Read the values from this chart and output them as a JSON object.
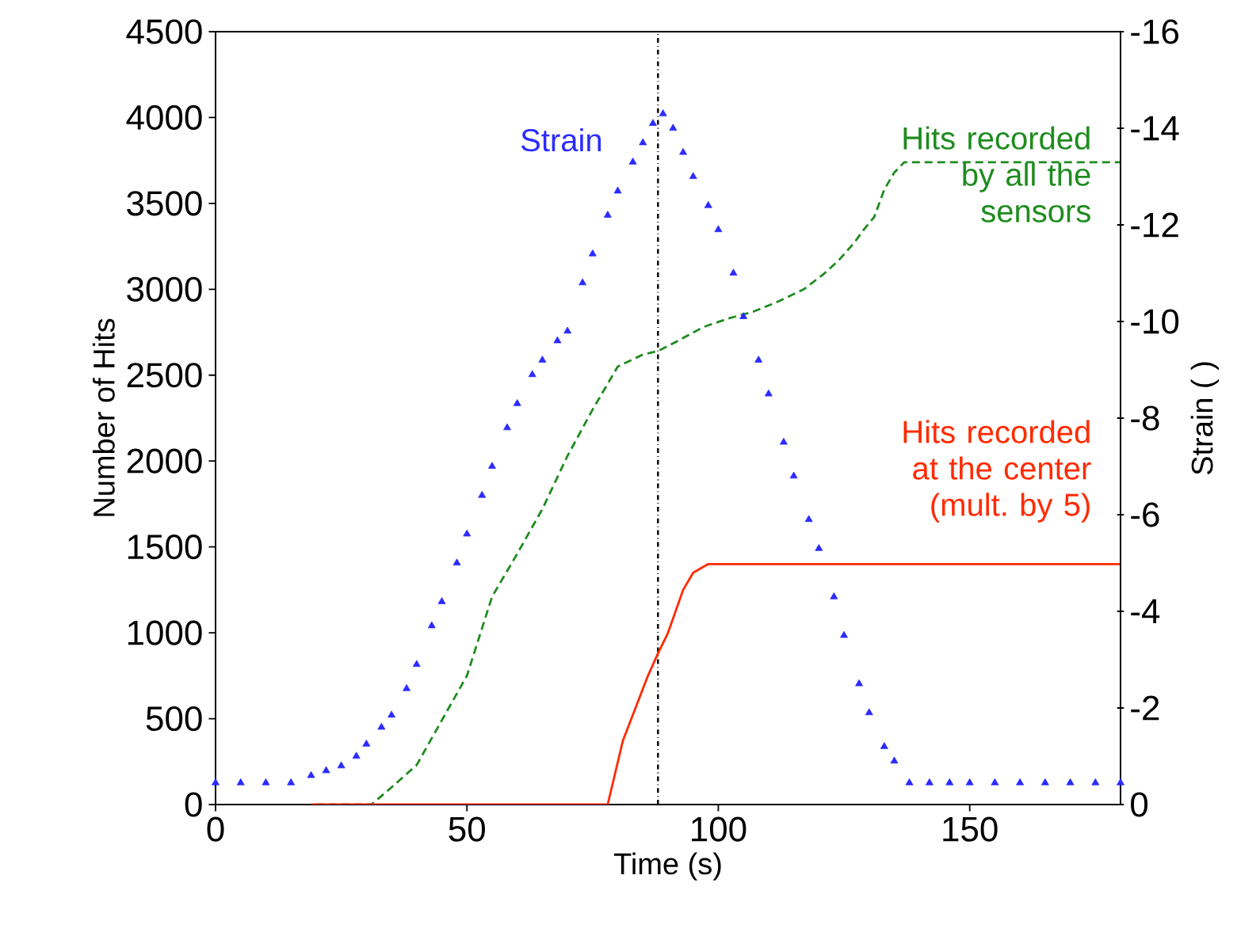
{
  "chart_data": {
    "type": "line",
    "xlabel": "Time (s)",
    "ylabel": "Number of Hits",
    "y2label": "Strain ( )",
    "xlim": [
      0,
      180
    ],
    "xticks": [
      0,
      50,
      100,
      150
    ],
    "ylim": [
      0,
      4500
    ],
    "yticks": [
      0,
      500,
      1000,
      1500,
      2000,
      2500,
      3000,
      3500,
      4000,
      4500
    ],
    "y2lim": [
      0,
      -16
    ],
    "y2ticks": [
      0,
      -2,
      -4,
      -6,
      -8,
      -10,
      -12,
      -14,
      -16
    ],
    "ref_lines": [
      {
        "axis": "x",
        "value": 88,
        "color": "#000000",
        "line_style": "dashdot"
      }
    ],
    "series": [
      {
        "name": "Strain",
        "type": "scatter",
        "axis": "y2",
        "marker": "triangle",
        "color": "#2b2bff",
        "x": [
          0,
          5,
          10,
          15,
          19,
          22,
          25,
          28,
          30,
          33,
          35,
          38,
          40,
          43,
          45,
          48,
          50,
          53,
          55,
          58,
          60,
          63,
          65,
          68,
          70,
          73,
          75,
          78,
          80,
          83,
          85,
          87,
          89,
          91,
          93,
          95,
          98,
          100,
          103,
          105,
          108,
          110,
          113,
          115,
          118,
          120,
          123,
          125,
          128,
          130,
          133,
          135,
          138,
          142,
          146,
          150,
          155,
          160,
          165,
          170,
          175,
          180
        ],
        "values": [
          -0.45,
          -0.45,
          -0.45,
          -0.45,
          -0.6,
          -0.7,
          -0.8,
          -1.0,
          -1.25,
          -1.6,
          -1.85,
          -2.4,
          -2.9,
          -3.7,
          -4.2,
          -5.0,
          -5.6,
          -6.4,
          -7.0,
          -7.8,
          -8.3,
          -8.9,
          -9.2,
          -9.6,
          -9.8,
          -10.8,
          -11.4,
          -12.2,
          -12.7,
          -13.3,
          -13.7,
          -14.1,
          -14.3,
          -14.0,
          -13.5,
          -13.0,
          -12.4,
          -11.9,
          -11.0,
          -10.1,
          -9.2,
          -8.5,
          -7.5,
          -6.8,
          -5.9,
          -5.3,
          -4.3,
          -3.5,
          -2.5,
          -1.9,
          -1.2,
          -0.9,
          -0.45,
          -0.45,
          -0.45,
          -0.45,
          -0.45,
          -0.45,
          -0.45,
          -0.45,
          -0.45,
          -0.45
        ]
      },
      {
        "name": "Hits recorded by all the sensors",
        "line_style": "dashed",
        "color": "#1e8c1e",
        "x": [
          20,
          31,
          35,
          40,
          45,
          50,
          55,
          60,
          65,
          70,
          75,
          80,
          85,
          88,
          92,
          97,
          102,
          107,
          112,
          117,
          121,
          124,
          127,
          129,
          131,
          133,
          135,
          137,
          180
        ],
        "values": [
          0,
          0,
          100,
          230,
          490,
          750,
          1210,
          1460,
          1720,
          2030,
          2300,
          2550,
          2620,
          2640,
          2700,
          2780,
          2830,
          2870,
          2930,
          3000,
          3090,
          3170,
          3270,
          3350,
          3420,
          3580,
          3680,
          3740,
          3740
        ]
      },
      {
        "name": "Hits recorded at the center (mult. by 5)",
        "line_style": "solid",
        "color": "#ff2a00",
        "x": [
          19,
          77,
          78,
          81,
          86,
          88,
          90,
          93,
          95,
          98,
          180
        ],
        "values": [
          0,
          0,
          0,
          370,
          750,
          880,
          1000,
          1250,
          1350,
          1400,
          1400
        ]
      }
    ]
  }
}
